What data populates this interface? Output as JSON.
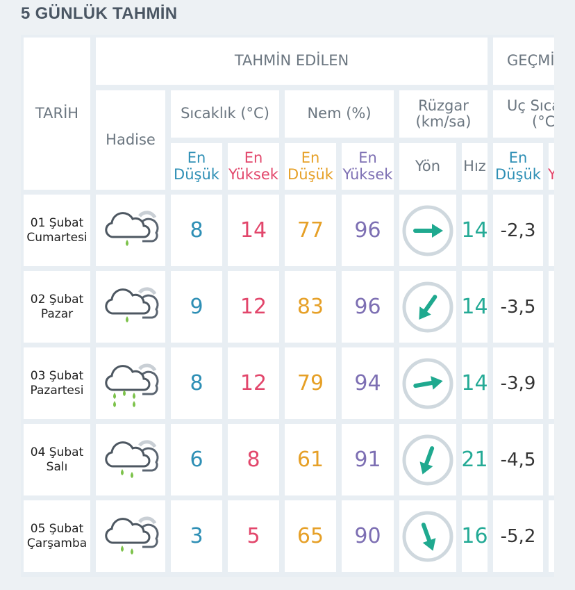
{
  "title": "5 GÜNLÜK TAHMİN",
  "header": {
    "tahmin_edilen": "TAHMİN EDİLEN",
    "gecmis": "GEÇMİŞ",
    "tarih": "TARİH",
    "hadise": "Hadise",
    "sicaklik": "Sıcaklık (°C)",
    "nem": "Nem (%)",
    "ruzgar_line1": "Rüzgar",
    "ruzgar_line2": "(km/sa)",
    "uc_line1": "Uç Sıcaklık",
    "uc_line2": "(°C)",
    "en": "En",
    "dusuk": "Düşük",
    "yuksek": "Yüksek",
    "yon": "Yön",
    "hiz": "Hız"
  },
  "rows": [
    {
      "date_day": "01 Şubat",
      "date_weekday": "Cumartesi",
      "icon": "cloud-light-rain-icon",
      "temp_min": "8",
      "temp_max": "14",
      "hum_min": "77",
      "hum_max": "96",
      "wind_dir_deg": 90,
      "wind_speed": "14",
      "ext_min": "-2,3"
    },
    {
      "date_day": "02 Şubat",
      "date_weekday": "Pazar",
      "icon": "cloud-light-rain-icon",
      "temp_min": "9",
      "temp_max": "12",
      "hum_min": "83",
      "hum_max": "96",
      "wind_dir_deg": 215,
      "wind_speed": "14",
      "ext_min": "-3,5"
    },
    {
      "date_day": "03 Şubat",
      "date_weekday": "Pazartesi",
      "icon": "cloud-heavy-rain-icon",
      "temp_min": "8",
      "temp_max": "12",
      "hum_min": "79",
      "hum_max": "94",
      "wind_dir_deg": 80,
      "wind_speed": "14",
      "ext_min": "-3,9"
    },
    {
      "date_day": "04 Şubat",
      "date_weekday": "Salı",
      "icon": "cloud-rain-icon",
      "temp_min": "6",
      "temp_max": "8",
      "hum_min": "61",
      "hum_max": "91",
      "wind_dir_deg": 200,
      "wind_speed": "21",
      "ext_min": "-4,5"
    },
    {
      "date_day": "05 Şubat",
      "date_weekday": "Çarşamba",
      "icon": "cloud-rain-icon",
      "temp_min": "3",
      "temp_max": "5",
      "hum_min": "65",
      "hum_max": "90",
      "wind_dir_deg": 160,
      "wind_speed": "16",
      "ext_min": "-5,2"
    }
  ]
}
